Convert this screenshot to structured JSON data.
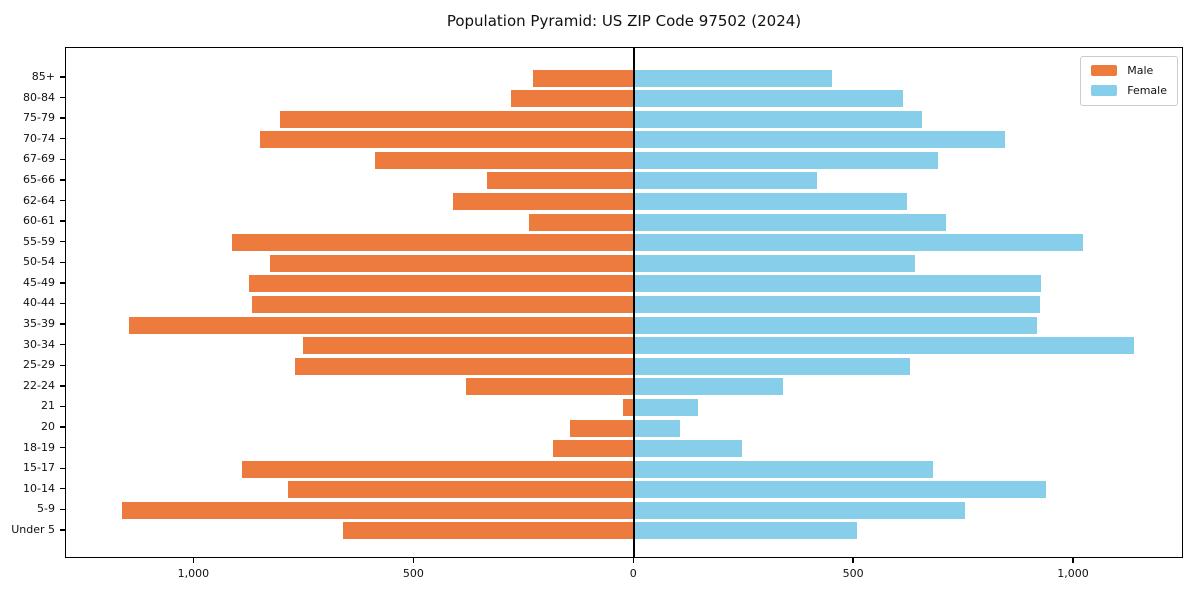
{
  "chart_data": {
    "type": "bar",
    "variant": "population-pyramid",
    "title": "Population Pyramid: US ZIP Code 97502 (2024)",
    "categories_top_to_bottom": [
      "85+",
      "80-84",
      "75-79",
      "70-74",
      "67-69",
      "65-66",
      "62-64",
      "60-61",
      "55-59",
      "50-54",
      "45-49",
      "40-44",
      "35-39",
      "30-34",
      "25-29",
      "22-24",
      "21",
      "20",
      "18-19",
      "15-17",
      "10-14",
      "5-9",
      "Under 5"
    ],
    "series": [
      {
        "name": "Male",
        "color": "#ec7b3d",
        "direction": "left",
        "values": [
          230,
          280,
          805,
          850,
          590,
          335,
          412,
          240,
          915,
          828,
          875,
          868,
          1148,
          752,
          771,
          382,
          25,
          147,
          185,
          892,
          788,
          1165,
          662
        ]
      },
      {
        "name": "Female",
        "color": "#87ceeb",
        "direction": "right",
        "values": [
          450,
          610,
          655,
          842,
          690,
          415,
          621,
          708,
          1020,
          638,
          924,
          923,
          915,
          1136,
          627,
          338,
          145,
          104,
          244,
          680,
          937,
          751,
          506
        ]
      }
    ],
    "x_axis": {
      "tick_values": [
        -1000,
        -500,
        0,
        500,
        1000
      ],
      "tick_labels": [
        "1,000",
        "500",
        "0",
        "500",
        "1,000"
      ],
      "xlim": [
        -1292,
        1250
      ]
    },
    "legend": {
      "position": "upper right",
      "entries": [
        "Male",
        "Female"
      ]
    },
    "grid": false,
    "axis_color": "#000000",
    "background_color": "#ffffff"
  }
}
